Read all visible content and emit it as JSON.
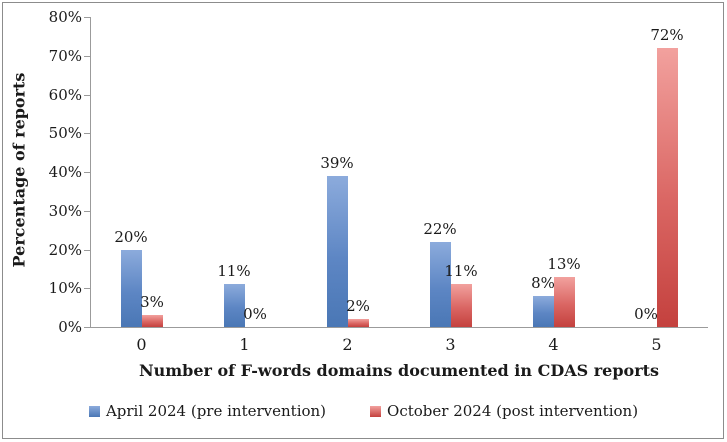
{
  "frame": {
    "background": "#ffffff",
    "border_color": "#8c8c8c",
    "axis_line_color": "#9b9b9b"
  },
  "chart_data": {
    "type": "bar",
    "title": "",
    "categories": [
      "0",
      "1",
      "2",
      "3",
      "4",
      "5"
    ],
    "series": [
      {
        "name": "April 2024 (pre intervention)",
        "values": [
          20,
          11,
          39,
          22,
          8,
          0
        ],
        "color": "#4a77b5",
        "color_light": "#8cabdc"
      },
      {
        "name": "October 2024 (post intervention)",
        "values": [
          3,
          0,
          2,
          11,
          13,
          72
        ],
        "color": "#c4413e",
        "color_light": "#f2a19e"
      }
    ],
    "data_labels": [
      [
        "20%",
        "11%",
        "39%",
        "22%",
        "8%",
        "0%"
      ],
      [
        "3%",
        "0%",
        "2%",
        "11%",
        "13%",
        "72%"
      ]
    ],
    "xlabel": "Number of F-words domains documented in CDAS reports",
    "ylabel": "Percentage of reports",
    "y_ticks": [
      "0%",
      "10%",
      "20%",
      "30%",
      "40%",
      "50%",
      "60%",
      "70%",
      "80%"
    ],
    "ylim": [
      0,
      80
    ],
    "grid": false,
    "legend_position": "bottom"
  }
}
